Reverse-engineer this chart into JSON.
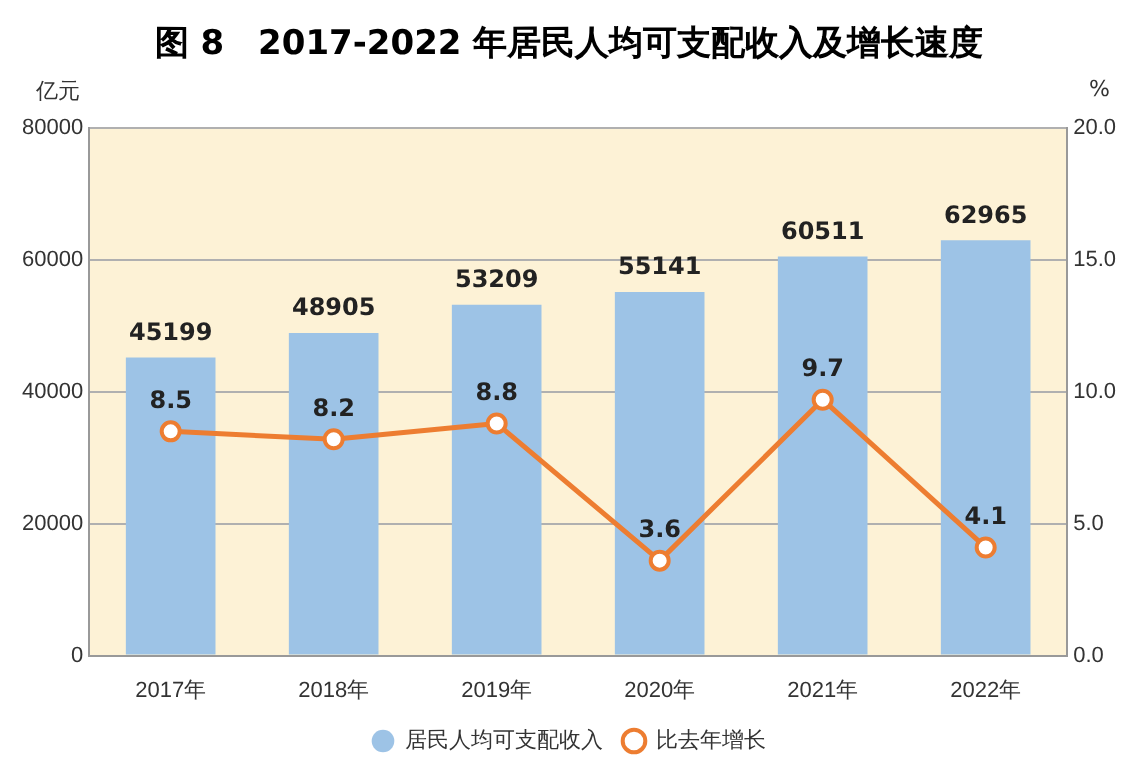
{
  "chart_data": {
    "type": "bar",
    "title": "图 8　2017-2022 年居民人均可支配收入及增长速度",
    "ylabel": "亿元",
    "y2label": "%",
    "categories": [
      "2017年",
      "2018年",
      "2019年",
      "2020年",
      "2021年",
      "2022年"
    ],
    "series": [
      {
        "name": "居民人均可支配收入",
        "color": "#9dc3e6",
        "values": [
          45199,
          48905,
          53209,
          55141,
          60511,
          62965
        ]
      },
      {
        "name": "比去年增长",
        "type": "line",
        "axis": "y2",
        "color": "#ed7d31",
        "values": [
          8.5,
          8.2,
          8.8,
          3.6,
          9.7,
          4.1
        ]
      }
    ],
    "ylim": [
      0,
      80000
    ],
    "yticks": [
      0,
      20000,
      40000,
      60000,
      80000
    ],
    "y2lim": [
      0,
      20
    ],
    "y2ticks": [
      {
        "value": 0,
        "label": "0.0"
      },
      {
        "value": 5,
        "label": "5.0"
      },
      {
        "value": 10,
        "label": "10.0"
      },
      {
        "value": 15,
        "label": "15.0"
      },
      {
        "value": 20,
        "label": "20.0"
      }
    ],
    "grid": "y",
    "legend": "bottom",
    "marker": "circle",
    "line_style": "solid",
    "data_labels": true
  }
}
